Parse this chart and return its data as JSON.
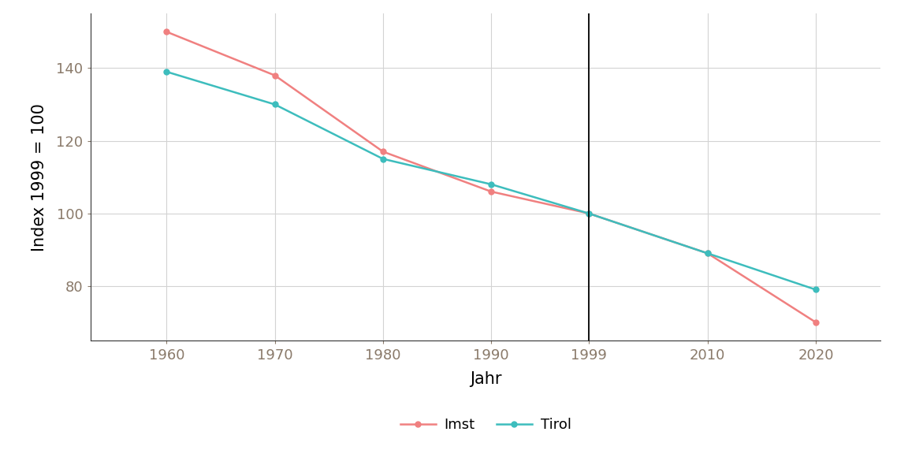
{
  "years": [
    1960,
    1970,
    1980,
    1990,
    1999,
    2010,
    2020
  ],
  "imst": [
    150,
    138,
    117,
    106,
    100,
    89,
    70
  ],
  "tirol": [
    139,
    130,
    115,
    108,
    100,
    89,
    79
  ],
  "imst_color": "#F08080",
  "tirol_color": "#3dbdbd",
  "vline_x": 1999,
  "xlabel": "Jahr",
  "ylabel": "Index 1999 = 100",
  "ylim": [
    65,
    155
  ],
  "xlim": [
    1953,
    2026
  ],
  "xticks": [
    1960,
    1970,
    1980,
    1990,
    1999,
    2010,
    2020
  ],
  "yticks": [
    80,
    100,
    120,
    140
  ],
  "background_color": "#ffffff",
  "panel_background": "#ffffff",
  "grid_color": "#d3d3d3",
  "legend_labels": [
    "Imst",
    "Tirol"
  ],
  "marker": "o",
  "linewidth": 1.8,
  "markersize": 5,
  "tick_color": "#8a7a6a",
  "tick_fontsize": 13,
  "axis_label_fontsize": 15,
  "legend_fontsize": 13
}
